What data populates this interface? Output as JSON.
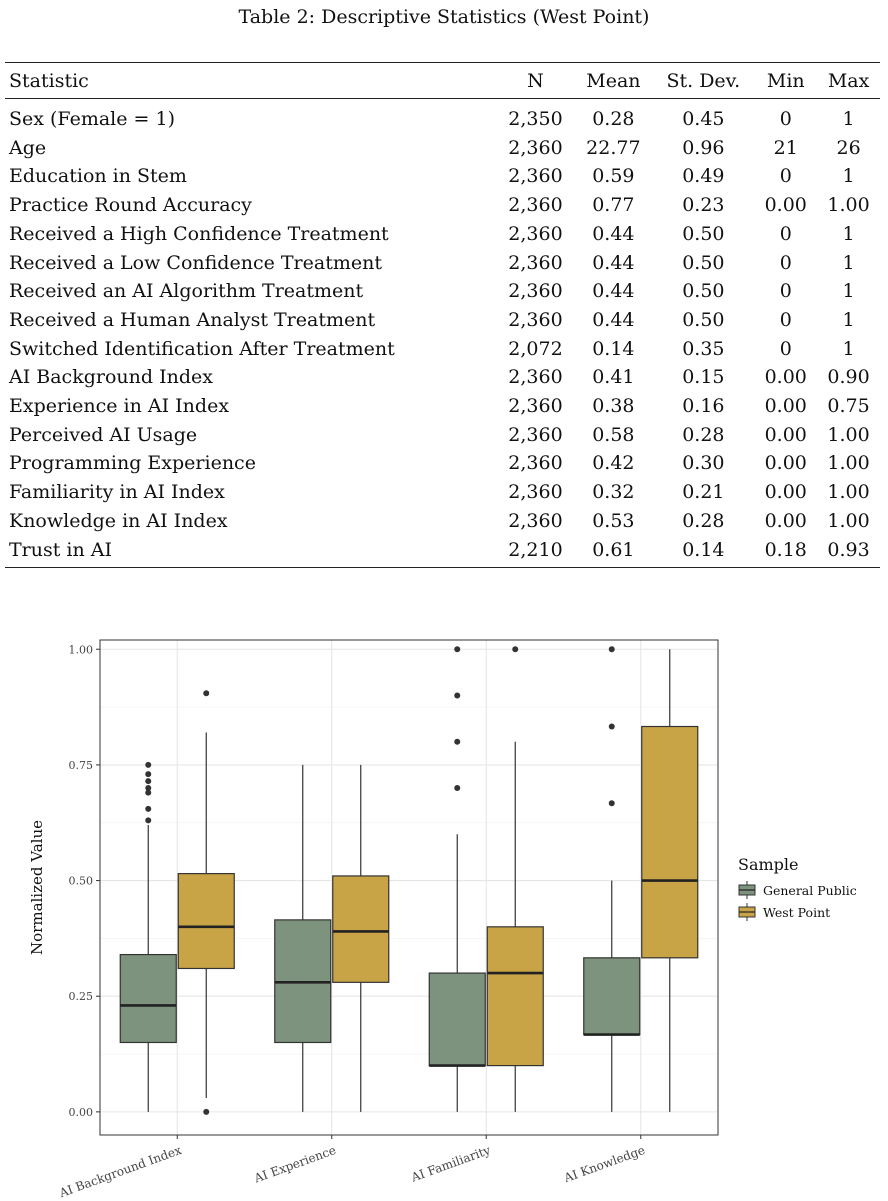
{
  "caption": "Table 2: Descriptive Statistics (West Point)",
  "table": {
    "headers": [
      "Statistic",
      "N",
      "Mean",
      "St. Dev.",
      "Min",
      "Max"
    ],
    "rows": [
      [
        "Sex (Female = 1)",
        "2,350",
        "0.28",
        "0.45",
        "0",
        "1"
      ],
      [
        "Age",
        "2,360",
        "22.77",
        "0.96",
        "21",
        "26"
      ],
      [
        "Education in Stem",
        "2,360",
        "0.59",
        "0.49",
        "0",
        "1"
      ],
      [
        "Practice Round Accuracy",
        "2,360",
        "0.77",
        "0.23",
        "0.00",
        "1.00"
      ],
      [
        "Received a High Confidence Treatment",
        "2,360",
        "0.44",
        "0.50",
        "0",
        "1"
      ],
      [
        "Received a Low Confidence Treatment",
        "2,360",
        "0.44",
        "0.50",
        "0",
        "1"
      ],
      [
        "Received an AI Algorithm Treatment",
        "2,360",
        "0.44",
        "0.50",
        "0",
        "1"
      ],
      [
        "Received a Human Analyst Treatment",
        "2,360",
        "0.44",
        "0.50",
        "0",
        "1"
      ],
      [
        "Switched Identification After Treatment",
        "2,072",
        "0.14",
        "0.35",
        "0",
        "1"
      ],
      [
        "AI Background Index",
        "2,360",
        "0.41",
        "0.15",
        "0.00",
        "0.90"
      ],
      [
        "Experience in AI Index",
        "2,360",
        "0.38",
        "0.16",
        "0.00",
        "0.75"
      ],
      [
        "Perceived AI Usage",
        "2,360",
        "0.58",
        "0.28",
        "0.00",
        "1.00"
      ],
      [
        "Programming Experience",
        "2,360",
        "0.42",
        "0.30",
        "0.00",
        "1.00"
      ],
      [
        "Familiarity in AI Index",
        "2,360",
        "0.32",
        "0.21",
        "0.00",
        "1.00"
      ],
      [
        "Knowledge in AI Index",
        "2,360",
        "0.53",
        "0.28",
        "0.00",
        "1.00"
      ],
      [
        "Trust in AI",
        "2,210",
        "0.61",
        "0.14",
        "0.18",
        "0.93"
      ]
    ]
  },
  "chart_data": {
    "type": "boxplot",
    "ylabel": "Normalized Value",
    "xlabel": "",
    "ylim": [
      -0.05,
      1.02
    ],
    "yticks": [
      0.0,
      0.25,
      0.5,
      0.75,
      1.0
    ],
    "ytick_labels": [
      "0.00",
      "0.25",
      "0.50",
      "0.75",
      "1.00"
    ],
    "categories": [
      "AI Background Index",
      "AI Experience",
      "AI Familiarity",
      "AI Knowledge"
    ],
    "legend": {
      "title": "Sample",
      "position": "right"
    },
    "grid": true,
    "series": [
      {
        "name": "General Public",
        "color": "#7d937d",
        "boxes": [
          {
            "min": 0.0,
            "q1": 0.15,
            "median": 0.23,
            "q3": 0.34,
            "max": 0.62,
            "outliers": [
              0.63,
              0.655,
              0.69,
              0.7,
              0.715,
              0.73,
              0.75
            ]
          },
          {
            "min": 0.0,
            "q1": 0.15,
            "median": 0.28,
            "q3": 0.415,
            "max": 0.75,
            "outliers": []
          },
          {
            "min": 0.0,
            "q1": 0.1,
            "median": 0.1,
            "q3": 0.3,
            "max": 0.6,
            "outliers": [
              0.7,
              0.8,
              0.9,
              1.0
            ]
          },
          {
            "min": 0.0,
            "q1": 0.167,
            "median": 0.167,
            "q3": 0.333,
            "max": 0.5,
            "outliers": [
              0.667,
              0.833,
              1.0
            ]
          }
        ]
      },
      {
        "name": "West Point",
        "color": "#c9a447",
        "boxes": [
          {
            "min": 0.03,
            "q1": 0.31,
            "median": 0.4,
            "q3": 0.515,
            "max": 0.82,
            "outliers": [
              0.0,
              0.905
            ]
          },
          {
            "min": 0.0,
            "q1": 0.28,
            "median": 0.39,
            "q3": 0.51,
            "max": 0.75,
            "outliers": []
          },
          {
            "min": 0.0,
            "q1": 0.1,
            "median": 0.3,
            "q3": 0.4,
            "max": 0.8,
            "outliers": [
              1.0
            ]
          },
          {
            "min": 0.0,
            "q1": 0.333,
            "median": 0.5,
            "q3": 0.833,
            "max": 1.0,
            "outliers": []
          }
        ]
      }
    ]
  }
}
